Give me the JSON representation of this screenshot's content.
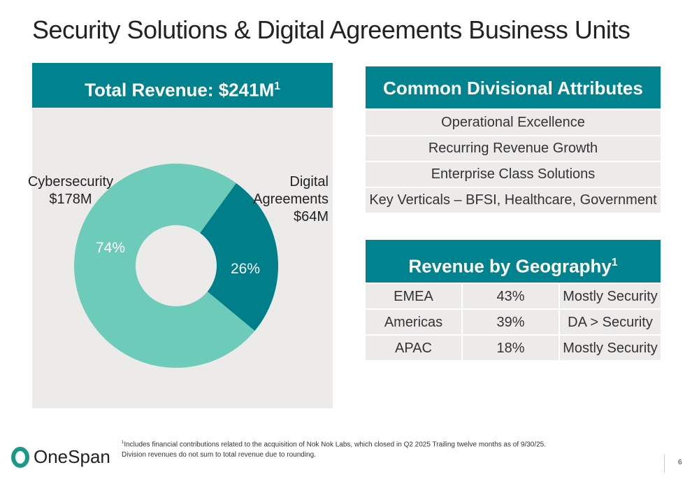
{
  "title": "Security Solutions & Digital Agreements Business Units",
  "left_panel": {
    "header": "Total Revenue: $241M",
    "header_sup": "1"
  },
  "chart_data": {
    "type": "pie",
    "variant": "donut",
    "title": "Total Revenue: $241M",
    "slices": [
      {
        "name": "Digital Agreements",
        "value_label": "$64M",
        "value": 64,
        "percent": 26,
        "percent_label": "26%",
        "color": "#007e8a"
      },
      {
        "name": "Cybersecurity",
        "value_label": "$178M",
        "value": 178,
        "percent": 74,
        "percent_label": "74%",
        "color": "#6dcbb9"
      }
    ]
  },
  "attributes": {
    "header": "Common Divisional Attributes",
    "items": [
      "Operational Excellence",
      "Recurring Revenue Growth",
      "Enterprise Class Solutions",
      "Key Verticals – BFSI, Healthcare, Government"
    ]
  },
  "geography": {
    "header": "Revenue by Geography",
    "header_sup": "1",
    "rows": [
      [
        "EMEA",
        "43%",
        "Mostly Security"
      ],
      [
        "Americas",
        "39%",
        "DA > Security"
      ],
      [
        "APAC",
        "18%",
        "Mostly Security"
      ]
    ]
  },
  "footnote": {
    "sup": "1",
    "text": "Includes financial contributions related to the acquisition of Nok Nok Labs, which closed in Q2 2025 Trailing twelve months as of 9/30/25. Division revenues do not sum to total revenue due to rounding."
  },
  "logo": "OneSpan",
  "page_number": "6"
}
